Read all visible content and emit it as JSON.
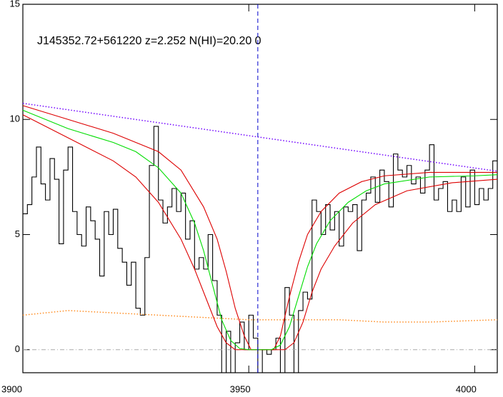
{
  "chart_data": {
    "type": "line",
    "annotation": "J145352.72+561220 z=2.252 N(HI)=20.20 0",
    "xlim": [
      3900,
      4005
    ],
    "ylim": [
      -1,
      15
    ],
    "xticks": [
      3900,
      3950,
      4000
    ],
    "yticks": [
      0,
      5,
      10,
      15
    ],
    "vline": 3952,
    "vline_color": "#0000cc",
    "series": [
      {
        "color": "#000000",
        "style": "step",
        "x": [
          3900,
          3901,
          3902,
          3903,
          3904,
          3905,
          3906,
          3907,
          3908,
          3909,
          3910,
          3911,
          3912,
          3913,
          3914,
          3915,
          3916,
          3917,
          3918,
          3919,
          3920,
          3921,
          3922,
          3923,
          3924,
          3925,
          3926,
          3927,
          3928,
          3929,
          3930,
          3931,
          3932,
          3933,
          3934,
          3935,
          3936,
          3937,
          3938,
          3939,
          3940,
          3941,
          3942,
          3943,
          3944,
          3945,
          3946,
          3947,
          3948,
          3949,
          3950,
          3951,
          3952,
          3953,
          3954,
          3955,
          3956,
          3957,
          3958,
          3959,
          3960,
          3961,
          3962,
          3963,
          3964,
          3965,
          3966,
          3967,
          3968,
          3969,
          3970,
          3971,
          3972,
          3973,
          3974,
          3975,
          3976,
          3977,
          3978,
          3979,
          3980,
          3981,
          3982,
          3983,
          3984,
          3985,
          3986,
          3987,
          3988,
          3989,
          3990,
          3991,
          3992,
          3993,
          3994,
          3995,
          3996,
          3997,
          3998,
          3999,
          4000,
          4001,
          4002,
          4003,
          4004
        ],
        "values": [
          5.9,
          6.3,
          7.5,
          8.8,
          7.2,
          6.5,
          8.3,
          7.4,
          4.6,
          7.8,
          8.8,
          6.0,
          5.0,
          4.5,
          6.2,
          5.6,
          4.8,
          3.2,
          6.0,
          5.0,
          6.1,
          4.4,
          3.8,
          2.8,
          3.8,
          1.8,
          1.5,
          4.0,
          8.0,
          9.7,
          6.5,
          5.5,
          6.2,
          7.0,
          6.0,
          6.8,
          4.8,
          5.6,
          3.5,
          4.0,
          3.5,
          5.0,
          3.0,
          1.5,
          -1.0,
          0.8,
          -1.0,
          0.3,
          1.2,
          0.0,
          1.5,
          0.5,
          -1.0,
          0.0,
          -0.2,
          0.0,
          0.5,
          -1.0,
          2.7,
          1.5,
          -1.0,
          1.7,
          2.5,
          2.2,
          6.5,
          6.0,
          5.0,
          6.3,
          5.2,
          6.0,
          4.5,
          6.2,
          6.0,
          6.3,
          4.3,
          6.5,
          6.8,
          7.5,
          6.4,
          7.8,
          7.3,
          6.2,
          8.5,
          7.8,
          7.5,
          8.0,
          7.2,
          7.5,
          6.8,
          7.8,
          8.9,
          6.5,
          7.0,
          7.3,
          6.0,
          6.5,
          6.0,
          7.5,
          6.2,
          7.8,
          6.3,
          7.0,
          6.5,
          7.0,
          8.2
        ]
      },
      {
        "color": "#7000ff",
        "style": "dotted",
        "x": [
          3900,
          4005
        ],
        "values": [
          10.7,
          7.75
        ]
      },
      {
        "color": "#ff8c20",
        "style": "dotted",
        "x": [
          3900,
          3910,
          3920,
          3930,
          3940,
          3950,
          3960,
          3970,
          3980,
          3990,
          4005
        ],
        "values": [
          1.5,
          1.7,
          1.6,
          1.5,
          1.4,
          1.3,
          1.3,
          1.3,
          1.2,
          1.2,
          1.3
        ]
      },
      {
        "color": "#aaaaaa",
        "style": "dashdot",
        "x": [
          3900,
          4005
        ],
        "values": [
          0,
          0
        ]
      },
      {
        "color": "#dd0000",
        "style": "solid",
        "x": [
          3900,
          3910,
          3920,
          3930,
          3935,
          3940,
          3943,
          3945,
          3947,
          3949,
          3950.5,
          3955.5,
          3957,
          3959,
          3961,
          3963,
          3966,
          3970,
          3975,
          3980,
          3990,
          4005
        ],
        "values": [
          10.6,
          10.0,
          9.4,
          8.6,
          7.8,
          6.2,
          4.8,
          3.4,
          1.8,
          0.6,
          0,
          0,
          0.6,
          2.3,
          3.8,
          5.0,
          6.0,
          6.8,
          7.3,
          7.55,
          7.7,
          7.7
        ]
      },
      {
        "color": "#dd0000",
        "style": "solid",
        "x": [
          3900,
          3910,
          3920,
          3925,
          3930,
          3935,
          3938,
          3941,
          3943,
          3945,
          3947,
          3958,
          3960,
          3962,
          3964,
          3966,
          3969,
          3973,
          3978,
          3985,
          3995,
          4005
        ],
        "values": [
          10.2,
          9.2,
          8.2,
          7.5,
          6.4,
          4.8,
          3.5,
          2.0,
          1.0,
          0.3,
          0,
          0,
          0.3,
          1.2,
          2.5,
          3.5,
          4.5,
          5.5,
          6.3,
          6.9,
          7.25,
          7.4
        ]
      },
      {
        "color": "#00dd00",
        "style": "solid",
        "x": [
          3900,
          3910,
          3920,
          3925,
          3930,
          3935,
          3938,
          3940,
          3942,
          3944,
          3946,
          3948,
          3950,
          3955,
          3957,
          3959,
          3961,
          3963,
          3965,
          3968,
          3972,
          3976,
          3980,
          3990,
          4000,
          4005
        ],
        "values": [
          10.4,
          9.6,
          9.0,
          8.6,
          7.9,
          6.8,
          5.5,
          4.3,
          2.8,
          1.3,
          0.4,
          0.05,
          0,
          0,
          0.2,
          1.0,
          2.3,
          3.6,
          4.6,
          5.6,
          6.4,
          6.9,
          7.2,
          7.5,
          7.55,
          7.6
        ]
      }
    ]
  }
}
